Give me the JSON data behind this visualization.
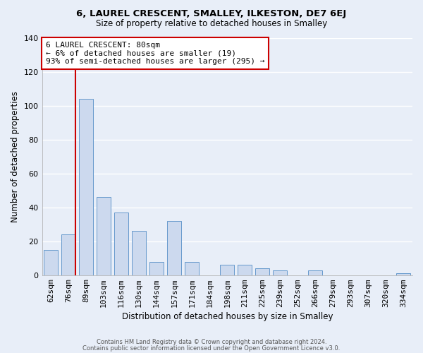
{
  "title": "6, LAUREL CRESCENT, SMALLEY, ILKESTON, DE7 6EJ",
  "subtitle": "Size of property relative to detached houses in Smalley",
  "xlabel": "Distribution of detached houses by size in Smalley",
  "ylabel": "Number of detached properties",
  "bar_labels": [
    "62sqm",
    "76sqm",
    "89sqm",
    "103sqm",
    "116sqm",
    "130sqm",
    "144sqm",
    "157sqm",
    "171sqm",
    "184sqm",
    "198sqm",
    "211sqm",
    "225sqm",
    "239sqm",
    "252sqm",
    "266sqm",
    "279sqm",
    "293sqm",
    "307sqm",
    "320sqm",
    "334sqm"
  ],
  "bar_heights": [
    15,
    24,
    104,
    46,
    37,
    26,
    8,
    32,
    8,
    0,
    6,
    6,
    4,
    3,
    0,
    3,
    0,
    0,
    0,
    0,
    1
  ],
  "bar_color": "#ccd9ee",
  "bar_edge_color": "#6699cc",
  "vline_color": "#cc0000",
  "annotation_title": "6 LAUREL CRESCENT: 80sqm",
  "annotation_line1": "← 6% of detached houses are smaller (19)",
  "annotation_line2": "93% of semi-detached houses are larger (295) →",
  "annotation_box_color": "#ffffff",
  "annotation_box_edge": "#cc0000",
  "ylim": [
    0,
    140
  ],
  "yticks": [
    0,
    20,
    40,
    60,
    80,
    100,
    120,
    140
  ],
  "footer1": "Contains HM Land Registry data © Crown copyright and database right 2024.",
  "footer2": "Contains public sector information licensed under the Open Government Licence v3.0.",
  "bg_color": "#e8eef8",
  "grid_color": "#ffffff"
}
